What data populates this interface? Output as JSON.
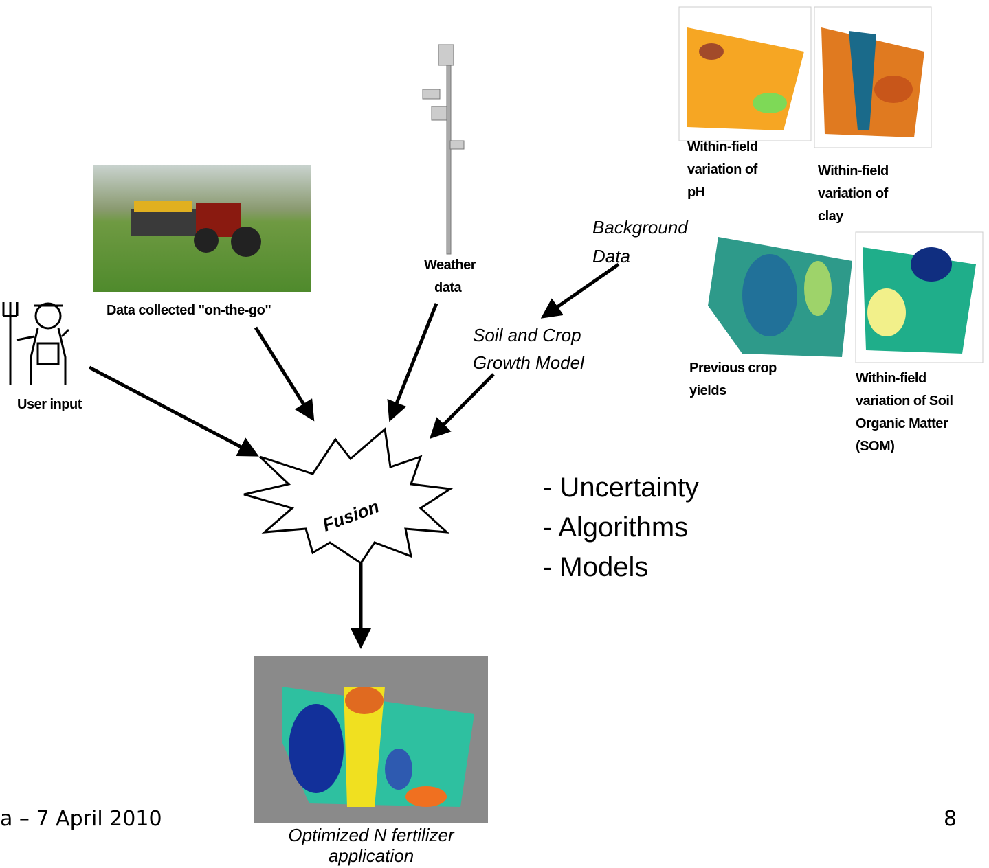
{
  "nodes": {
    "on_the_go": {
      "label": "Data collected \"on-the-go\""
    },
    "weather": {
      "lines": [
        "Weather",
        "data"
      ]
    },
    "user": {
      "label": "User input"
    },
    "background": {
      "lines": [
        "Background",
        "Data"
      ]
    },
    "model": {
      "lines": [
        "Soil and Crop",
        "Growth Model"
      ]
    },
    "fusion": {
      "label": "Fusion"
    },
    "ph": {
      "lines": [
        "Within-field",
        "variation of",
        "pH"
      ]
    },
    "clay": {
      "lines": [
        "Within-field",
        "variation of",
        "clay"
      ]
    },
    "yields": {
      "lines": [
        "Previous crop",
        "yields"
      ]
    },
    "som": {
      "lines": [
        "Within-field",
        "variation of Soil",
        "Organic Matter",
        "(SOM)"
      ]
    },
    "output": {
      "lines": [
        "Optimized N fertilizer",
        "application"
      ]
    }
  },
  "bullets": [
    "- Uncertainty",
    "- Algorithms",
    "- Models"
  ],
  "footer": {
    "date": "a – 7 April 2010",
    "page": "8"
  }
}
